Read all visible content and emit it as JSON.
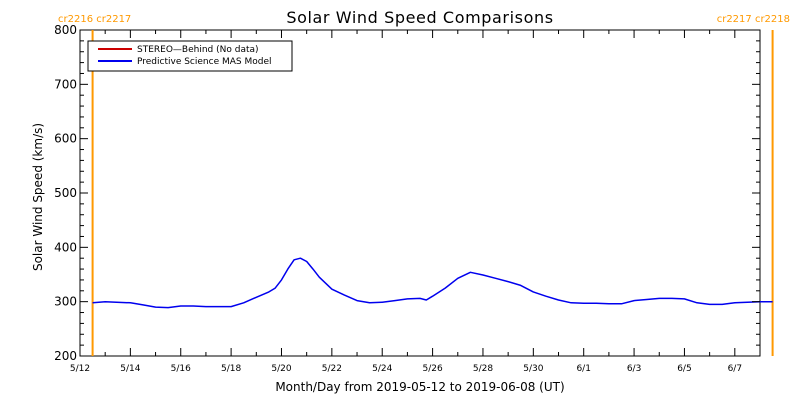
{
  "chart_data": {
    "type": "line",
    "title": "Solar Wind Speed Comparisons",
    "xlabel": "Month/Day from 2019-05-12 to 2019-06-08 (UT)",
    "ylabel": "Solar Wind Speed (km/s)",
    "xlim": [
      "2019-05-12",
      "2019-06-08"
    ],
    "ylim": [
      200,
      800
    ],
    "y_ticks": [
      200,
      300,
      400,
      500,
      600,
      700,
      800
    ],
    "x_ticks": [
      {
        "date": "2019-05-12",
        "label": "5/12"
      },
      {
        "date": "2019-05-14",
        "label": "5/14"
      },
      {
        "date": "2019-05-16",
        "label": "5/16"
      },
      {
        "date": "2019-05-18",
        "label": "5/18"
      },
      {
        "date": "2019-05-20",
        "label": "5/20"
      },
      {
        "date": "2019-05-22",
        "label": "5/22"
      },
      {
        "date": "2019-05-24",
        "label": "5/24"
      },
      {
        "date": "2019-05-26",
        "label": "5/26"
      },
      {
        "date": "2019-05-28",
        "label": "5/28"
      },
      {
        "date": "2019-05-30",
        "label": "5/30"
      },
      {
        "date": "2019-06-01",
        "label": "6/1"
      },
      {
        "date": "2019-06-03",
        "label": "6/3"
      },
      {
        "date": "2019-06-05",
        "label": "6/5"
      },
      {
        "date": "2019-06-07",
        "label": "6/7"
      }
    ],
    "legend": {
      "placement": "top-left",
      "entries": [
        {
          "label": "STEREO—Behind (No data)",
          "color": "#cc0000"
        },
        {
          "label": "Predictive Science MAS Model",
          "color": "#0000ee"
        }
      ]
    },
    "carrington_markers": [
      {
        "date": "2019-05-12T12:00",
        "label": "cr2216 cr2217",
        "align": "left",
        "color": "#ff9900"
      },
      {
        "date": "2019-06-08T12:00",
        "label": "cr2217 cr2218",
        "align": "right",
        "color": "#ff9900"
      }
    ],
    "series": [
      {
        "name": "Predictive Science MAS Model",
        "color": "#0000ee",
        "points": [
          [
            "2019-05-12T12:00",
            298
          ],
          [
            "2019-05-13T00:00",
            300
          ],
          [
            "2019-05-14T00:00",
            298
          ],
          [
            "2019-05-14T12:00",
            294
          ],
          [
            "2019-05-15T00:00",
            290
          ],
          [
            "2019-05-15T12:00",
            289
          ],
          [
            "2019-05-16T00:00",
            292
          ],
          [
            "2019-05-16T12:00",
            292
          ],
          [
            "2019-05-17T00:00",
            291
          ],
          [
            "2019-05-18T00:00",
            291
          ],
          [
            "2019-05-18T12:00",
            298
          ],
          [
            "2019-05-19T00:00",
            308
          ],
          [
            "2019-05-19T12:00",
            318
          ],
          [
            "2019-05-19T18:00",
            325
          ],
          [
            "2019-05-20T00:00",
            340
          ],
          [
            "2019-05-20T06:00",
            360
          ],
          [
            "2019-05-20T12:00",
            377
          ],
          [
            "2019-05-20T18:00",
            380
          ],
          [
            "2019-05-21T00:00",
            374
          ],
          [
            "2019-05-21T06:00",
            360
          ],
          [
            "2019-05-21T12:00",
            345
          ],
          [
            "2019-05-22T00:00",
            323
          ],
          [
            "2019-05-22T12:00",
            312
          ],
          [
            "2019-05-23T00:00",
            302
          ],
          [
            "2019-05-23T12:00",
            298
          ],
          [
            "2019-05-24T00:00",
            299
          ],
          [
            "2019-05-24T12:00",
            302
          ],
          [
            "2019-05-25T00:00",
            305
          ],
          [
            "2019-05-25T12:00",
            306
          ],
          [
            "2019-05-25T18:00",
            303
          ],
          [
            "2019-05-26T00:00",
            310
          ],
          [
            "2019-05-26T12:00",
            325
          ],
          [
            "2019-05-27T00:00",
            343
          ],
          [
            "2019-05-27T12:00",
            354
          ],
          [
            "2019-05-28T00:00",
            349
          ],
          [
            "2019-05-28T12:00",
            343
          ],
          [
            "2019-05-29T00:00",
            337
          ],
          [
            "2019-05-29T12:00",
            330
          ],
          [
            "2019-05-30T00:00",
            318
          ],
          [
            "2019-05-30T12:00",
            310
          ],
          [
            "2019-05-31T00:00",
            303
          ],
          [
            "2019-05-31T12:00",
            298
          ],
          [
            "2019-06-01T00:00",
            297
          ],
          [
            "2019-06-01T12:00",
            297
          ],
          [
            "2019-06-02T00:00",
            296
          ],
          [
            "2019-06-02T12:00",
            296
          ],
          [
            "2019-06-03T00:00",
            302
          ],
          [
            "2019-06-03T12:00",
            304
          ],
          [
            "2019-06-04T00:00",
            306
          ],
          [
            "2019-06-04T12:00",
            306
          ],
          [
            "2019-06-05T00:00",
            305
          ],
          [
            "2019-06-05T12:00",
            298
          ],
          [
            "2019-06-06T00:00",
            295
          ],
          [
            "2019-06-06T12:00",
            295
          ],
          [
            "2019-06-07T00:00",
            298
          ],
          [
            "2019-06-07T12:00",
            299
          ],
          [
            "2019-06-08T00:00",
            300
          ],
          [
            "2019-06-08T12:00",
            300
          ]
        ]
      }
    ],
    "colors": {
      "background": "#ffffff",
      "axes": "#000000",
      "marker": "#ff9900"
    },
    "grid": false
  }
}
